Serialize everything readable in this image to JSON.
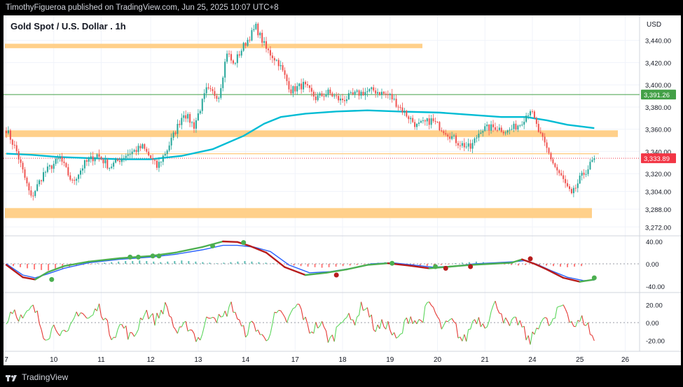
{
  "header": {
    "publisher_text": "TimothyFigueroa published on TradingView.com, Jun 25, 2025 10:07 UTC+8"
  },
  "footer": {
    "brand": "TradingView"
  },
  "colors": {
    "zone": "#ffd08a",
    "up": "#26a69a",
    "down": "#ef5350",
    "ma": "#00bcd4",
    "green_level": "#43a047",
    "red_level": "#f23645",
    "macd_fast": "#2962ff",
    "macd_green": "#4caf50",
    "macd_red": "#b71c1c",
    "stoch_green": "#5cd65c",
    "stoch_red": "#e53935"
  },
  "chart_data": {
    "type": "candlestick",
    "title": "Gold Spot / U.S. Dollar . 1h",
    "currency": "USD",
    "ylim": [
      3264,
      3460
    ],
    "y_ticks": [
      "3,440.00",
      "3,420.00",
      "3,400.00",
      "3,380.00",
      "3,360.00",
      "3,340.00",
      "3,320.00",
      "3,304.00",
      "3,288.00",
      "3,272.00"
    ],
    "y_tick_values": [
      3440,
      3420,
      3400,
      3380,
      3360,
      3340,
      3320,
      3304,
      3288,
      3272
    ],
    "x_ticks": [
      "7",
      "10",
      "11",
      "12",
      "13",
      "14",
      "17",
      "18",
      "19",
      "20",
      "21",
      "24",
      "25",
      "26"
    ],
    "x_tick_index": [
      0,
      23,
      46,
      70,
      93,
      116,
      140,
      163,
      186,
      209,
      232,
      255,
      278,
      300
    ],
    "resistance_zones": [
      {
        "low": 3433,
        "high": 3437
      },
      {
        "low": 3353,
        "high": 3359
      },
      {
        "low": 3280,
        "high": 3289
      }
    ],
    "thin_level": 3338,
    "price_labels": [
      {
        "text": "3,391.26",
        "value": 3391.26,
        "kind": "green"
      },
      {
        "text": "3,333.89",
        "value": 3333.89,
        "kind": "red"
      }
    ],
    "waypoints": [
      [
        0,
        3360
      ],
      [
        5,
        3340
      ],
      [
        12,
        3298
      ],
      [
        18,
        3320
      ],
      [
        26,
        3334
      ],
      [
        32,
        3312
      ],
      [
        38,
        3329
      ],
      [
        44,
        3337
      ],
      [
        50,
        3326
      ],
      [
        58,
        3337
      ],
      [
        66,
        3344
      ],
      [
        73,
        3326
      ],
      [
        78,
        3342
      ],
      [
        86,
        3375
      ],
      [
        91,
        3363
      ],
      [
        97,
        3395
      ],
      [
        103,
        3390
      ],
      [
        107,
        3430
      ],
      [
        110,
        3418
      ],
      [
        115,
        3435
      ],
      [
        121,
        3452
      ],
      [
        126,
        3432
      ],
      [
        132,
        3420
      ],
      [
        138,
        3395
      ],
      [
        144,
        3400
      ],
      [
        150,
        3388
      ],
      [
        156,
        3393
      ],
      [
        162,
        3386
      ],
      [
        170,
        3392
      ],
      [
        178,
        3395
      ],
      [
        186,
        3390
      ],
      [
        193,
        3375
      ],
      [
        199,
        3363
      ],
      [
        206,
        3368
      ],
      [
        213,
        3358
      ],
      [
        219,
        3348
      ],
      [
        225,
        3343
      ],
      [
        230,
        3360
      ],
      [
        237,
        3362
      ],
      [
        243,
        3358
      ],
      [
        249,
        3365
      ],
      [
        254,
        3378
      ],
      [
        258,
        3358
      ],
      [
        262,
        3342
      ],
      [
        266,
        3326
      ],
      [
        270,
        3314
      ],
      [
        274,
        3300
      ],
      [
        278,
        3315
      ],
      [
        282,
        3325
      ],
      [
        285,
        3333.89
      ]
    ],
    "ma_points": [
      [
        0,
        3338
      ],
      [
        12,
        3337
      ],
      [
        25,
        3335
      ],
      [
        40,
        3334
      ],
      [
        55,
        3333
      ],
      [
        70,
        3333
      ],
      [
        85,
        3336
      ],
      [
        100,
        3342
      ],
      [
        115,
        3354
      ],
      [
        125,
        3365
      ],
      [
        133,
        3371
      ],
      [
        145,
        3374
      ],
      [
        160,
        3376
      ],
      [
        175,
        3377
      ],
      [
        190,
        3376
      ],
      [
        210,
        3375
      ],
      [
        225,
        3373
      ],
      [
        240,
        3371
      ],
      [
        252,
        3371
      ],
      [
        262,
        3368
      ],
      [
        272,
        3364
      ],
      [
        285,
        3361
      ]
    ],
    "macd": {
      "y_ticks": [
        "40.00",
        "0.00",
        "-40.00"
      ],
      "y_values": [
        40,
        0,
        -40
      ],
      "ylim": [
        -50,
        50
      ],
      "signal_points": [
        [
          0,
          -2
        ],
        [
          8,
          -24
        ],
        [
          14,
          -28
        ],
        [
          20,
          -15
        ],
        [
          28,
          -4
        ],
        [
          40,
          4
        ],
        [
          55,
          10
        ],
        [
          70,
          14
        ],
        [
          82,
          20
        ],
        [
          95,
          30
        ],
        [
          105,
          40
        ],
        [
          112,
          39
        ],
        [
          118,
          32
        ],
        [
          126,
          20
        ],
        [
          135,
          -6
        ],
        [
          145,
          -20
        ],
        [
          155,
          -16
        ],
        [
          165,
          -10
        ],
        [
          175,
          -2
        ],
        [
          185,
          1
        ],
        [
          195,
          -3
        ],
        [
          205,
          -8
        ],
        [
          215,
          -5
        ],
        [
          225,
          -2
        ],
        [
          235,
          0
        ],
        [
          245,
          2
        ],
        [
          250,
          8
        ],
        [
          256,
          0
        ],
        [
          262,
          -10
        ],
        [
          270,
          -25
        ],
        [
          278,
          -32
        ],
        [
          285,
          -28
        ]
      ],
      "fast_points": [
        [
          0,
          0
        ],
        [
          8,
          -20
        ],
        [
          14,
          -25
        ],
        [
          20,
          -18
        ],
        [
          28,
          -8
        ],
        [
          40,
          2
        ],
        [
          55,
          8
        ],
        [
          70,
          12
        ],
        [
          82,
          17
        ],
        [
          95,
          25
        ],
        [
          105,
          33
        ],
        [
          112,
          33
        ],
        [
          120,
          30
        ],
        [
          128,
          22
        ],
        [
          137,
          -2
        ],
        [
          147,
          -16
        ],
        [
          157,
          -14
        ],
        [
          167,
          -8
        ],
        [
          177,
          0
        ],
        [
          187,
          2
        ],
        [
          197,
          -2
        ],
        [
          207,
          -6
        ],
        [
          217,
          -4
        ],
        [
          227,
          0
        ],
        [
          237,
          2
        ],
        [
          247,
          4
        ],
        [
          252,
          6
        ],
        [
          258,
          -2
        ],
        [
          264,
          -12
        ],
        [
          272,
          -24
        ],
        [
          280,
          -30
        ],
        [
          285,
          -29
        ]
      ],
      "dots": [
        [
          22,
          -28
        ],
        [
          60,
          12
        ],
        [
          64,
          12
        ],
        [
          71,
          14
        ],
        [
          74,
          14
        ],
        [
          100,
          32
        ],
        [
          115,
          38
        ],
        [
          160,
          -20
        ],
        [
          187,
          1
        ],
        [
          208,
          -5
        ],
        [
          213,
          -8
        ],
        [
          225,
          -5
        ],
        [
          254,
          9
        ],
        [
          285,
          -25
        ]
      ],
      "hist": [
        -2,
        -4,
        -6,
        -8,
        -10,
        -11,
        -12,
        -10,
        -8,
        -6,
        -4,
        -2,
        -1,
        1,
        2,
        3,
        4,
        5,
        5,
        6,
        5,
        4,
        3,
        4,
        5,
        6,
        5,
        4,
        3,
        2,
        1,
        2,
        3,
        4,
        5,
        4,
        3,
        2,
        1,
        -1,
        -2,
        -3,
        -4,
        -5,
        -6,
        -7,
        -6,
        -5,
        -4,
        -3,
        -2,
        -1,
        1,
        2,
        3,
        2,
        1,
        -1,
        -2,
        -3,
        -4,
        -3,
        -2,
        -1,
        1,
        2,
        3,
        4,
        3,
        2,
        1,
        -1,
        -2,
        -3,
        -2,
        -1,
        -2,
        -3,
        -4,
        -5,
        -6,
        -5,
        -4
      ]
    },
    "stochastic": {
      "y_ticks": [
        "20.00",
        "0.00",
        "-20.00"
      ],
      "y_values": [
        20,
        0,
        -20
      ],
      "ylim": [
        -32,
        32
      ]
    }
  }
}
